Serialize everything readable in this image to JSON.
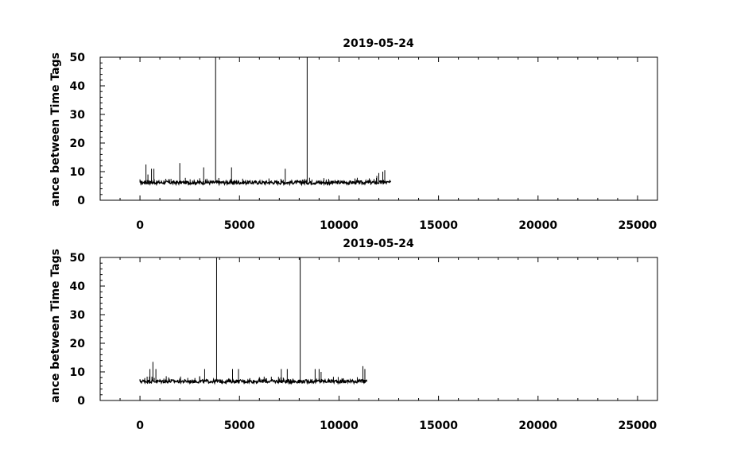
{
  "chart_data": [
    {
      "type": "line",
      "title": "2019-05-24",
      "ylabel": "ance between Time Tags",
      "xlabel": "",
      "xlim": [
        -2000,
        26000
      ],
      "ylim": [
        0,
        50
      ],
      "xticks": [
        0,
        5000,
        10000,
        15000,
        20000,
        25000
      ],
      "yticks": [
        0,
        10,
        20,
        30,
        40,
        50
      ],
      "grid": false,
      "series": [
        {
          "baseline": 6.2,
          "x_range": [
            0,
            12600
          ],
          "spikes": [
            {
              "x": 300,
              "y": 12.5
            },
            {
              "x": 400,
              "y": 9
            },
            {
              "x": 580,
              "y": 11
            },
            {
              "x": 700,
              "y": 11
            },
            {
              "x": 1300,
              "y": 7.5
            },
            {
              "x": 2000,
              "y": 13
            },
            {
              "x": 3200,
              "y": 11.5
            },
            {
              "x": 3800,
              "y": 50
            },
            {
              "x": 4600,
              "y": 11.5
            },
            {
              "x": 7300,
              "y": 11
            },
            {
              "x": 8400,
              "y": 50
            },
            {
              "x": 11900,
              "y": 8.5
            },
            {
              "x": 12000,
              "y": 9.5
            },
            {
              "x": 12200,
              "y": 10
            },
            {
              "x": 12300,
              "y": 10.5
            }
          ]
        }
      ]
    },
    {
      "type": "line",
      "title": "2019-05-24",
      "ylabel": "ance between Time Tags",
      "xlabel": "",
      "xlim": [
        -2000,
        26000
      ],
      "ylim": [
        0,
        50
      ],
      "xticks": [
        0,
        5000,
        10000,
        15000,
        20000,
        25000
      ],
      "yticks": [
        0,
        10,
        20,
        30,
        40,
        50
      ],
      "grid": false,
      "series": [
        {
          "baseline": 6.7,
          "x_range": [
            0,
            11400
          ],
          "spikes": [
            {
              "x": 500,
              "y": 11
            },
            {
              "x": 650,
              "y": 13.5
            },
            {
              "x": 800,
              "y": 11
            },
            {
              "x": 3000,
              "y": 8.5
            },
            {
              "x": 3250,
              "y": 11
            },
            {
              "x": 3850,
              "y": 50
            },
            {
              "x": 4650,
              "y": 11
            },
            {
              "x": 4950,
              "y": 11
            },
            {
              "x": 7100,
              "y": 11
            },
            {
              "x": 7400,
              "y": 11
            },
            {
              "x": 8050,
              "y": 50
            },
            {
              "x": 8800,
              "y": 11
            },
            {
              "x": 9000,
              "y": 11
            },
            {
              "x": 9100,
              "y": 10
            },
            {
              "x": 11200,
              "y": 12
            },
            {
              "x": 11300,
              "y": 11
            }
          ]
        }
      ]
    }
  ]
}
